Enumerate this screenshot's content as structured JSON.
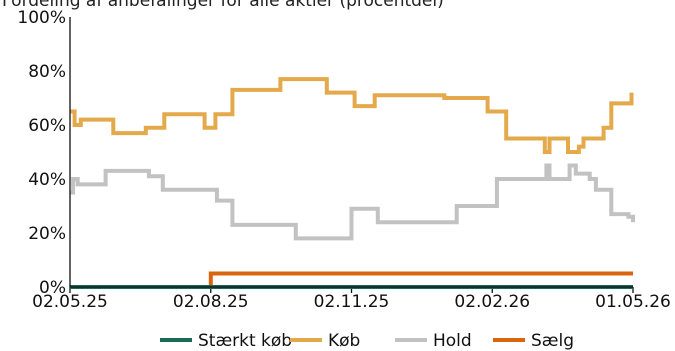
{
  "chart_data": {
    "type": "line",
    "title": "Fordeling af anbefalinger for alle aktier (procentdel)",
    "xlabel": "",
    "ylabel": "",
    "ylim": [
      0,
      100
    ],
    "y_ticks": [
      "0%",
      "20%",
      "40%",
      "60%",
      "80%",
      "100%"
    ],
    "x_ticks": [
      "02.05.25",
      "02.08.25",
      "02.11.25",
      "02.02.26",
      "01.05.26"
    ],
    "x_range": [
      "2025-05-02",
      "2026-05-01"
    ],
    "grid": false,
    "legend_position": "bottom",
    "step": true,
    "series": [
      {
        "name": "Stærkt køb",
        "color": "#1a6b5a",
        "points": [
          [
            "2025-05-02",
            0
          ],
          [
            "2026-05-01",
            0
          ]
        ]
      },
      {
        "name": "Køb",
        "color": "#e3a94a",
        "points": [
          [
            "2025-05-02",
            65
          ],
          [
            "2025-05-05",
            60
          ],
          [
            "2025-05-09",
            62
          ],
          [
            "2025-05-30",
            57
          ],
          [
            "2025-06-20",
            59
          ],
          [
            "2025-07-02",
            64
          ],
          [
            "2025-07-28",
            59
          ],
          [
            "2025-08-04",
            64
          ],
          [
            "2025-08-15",
            73
          ],
          [
            "2025-09-15",
            77
          ],
          [
            "2025-10-15",
            72
          ],
          [
            "2025-11-02",
            67
          ],
          [
            "2025-11-15",
            71
          ],
          [
            "2025-12-30",
            70
          ],
          [
            "2026-01-27",
            65
          ],
          [
            "2026-02-08",
            55
          ],
          [
            "2026-03-05",
            50
          ],
          [
            "2026-03-08",
            55
          ],
          [
            "2026-03-20",
            50
          ],
          [
            "2026-03-27",
            52
          ],
          [
            "2026-03-30",
            55
          ],
          [
            "2026-04-12",
            59
          ],
          [
            "2026-04-17",
            68
          ],
          [
            "2026-04-30",
            72
          ]
        ]
      },
      {
        "name": "Hold",
        "color": "#c2c2c2",
        "points": [
          [
            "2025-05-02",
            35
          ],
          [
            "2025-05-04",
            40
          ],
          [
            "2025-05-07",
            38
          ],
          [
            "2025-05-25",
            43
          ],
          [
            "2025-06-22",
            41
          ],
          [
            "2025-07-01",
            36
          ],
          [
            "2025-08-05",
            32
          ],
          [
            "2025-08-15",
            23
          ],
          [
            "2025-09-25",
            18
          ],
          [
            "2025-10-31",
            29
          ],
          [
            "2025-11-17",
            24
          ],
          [
            "2026-01-07",
            30
          ],
          [
            "2026-02-02",
            40
          ],
          [
            "2026-03-06",
            45
          ],
          [
            "2026-03-08",
            40
          ],
          [
            "2026-03-21",
            45
          ],
          [
            "2026-03-25",
            42
          ],
          [
            "2026-04-03",
            40
          ],
          [
            "2026-04-07",
            36
          ],
          [
            "2026-04-17",
            27
          ],
          [
            "2026-04-28",
            26
          ],
          [
            "2026-05-01",
            24
          ]
        ]
      },
      {
        "name": "Sælg",
        "color": "#d9650f",
        "points": [
          [
            "2025-05-02",
            0
          ],
          [
            "2025-07-31",
            0
          ],
          [
            "2025-08-01",
            5
          ],
          [
            "2026-05-01",
            5
          ]
        ]
      }
    ]
  }
}
